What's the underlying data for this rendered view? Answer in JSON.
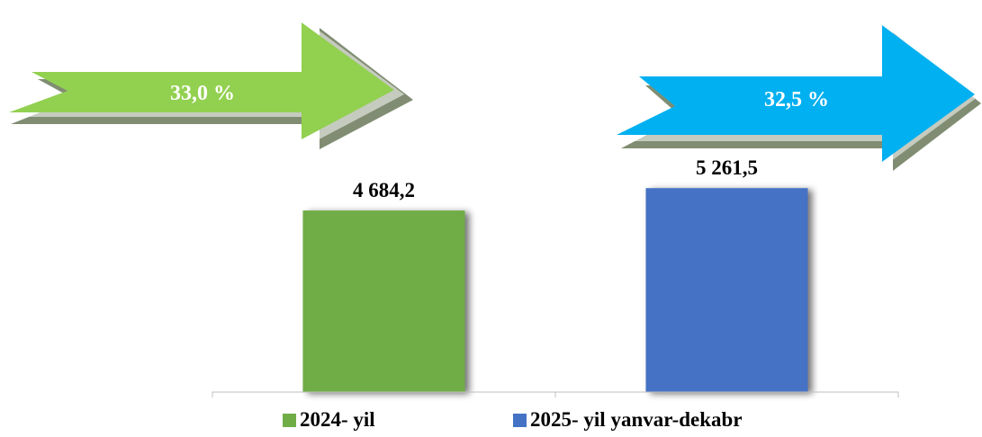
{
  "indicators": [
    {
      "label": "33,0 %",
      "color": "#92d050",
      "shadow": "#808d72"
    },
    {
      "label": "32,5 %",
      "color": "#00b0f0",
      "shadow": "#808d72"
    }
  ],
  "chart_data": {
    "type": "bar",
    "categories": [
      "2024- yil",
      "2025- yil yanvar-dekabr"
    ],
    "values": [
      4684.2,
      5261.5
    ],
    "value_labels": [
      "4 684,2",
      "5 261,5"
    ],
    "colors": [
      "#70ad47",
      "#4472c4"
    ],
    "title": "",
    "xlabel": "",
    "ylabel": "",
    "ylim": [
      0,
      5800
    ],
    "grid": false,
    "legend_position": "bottom",
    "series": [
      {
        "name": "2024- yil",
        "values": [
          4684.2,
          null
        ]
      },
      {
        "name": "2025- yil yanvar-dekabr",
        "values": [
          null,
          5261.5
        ]
      }
    ]
  }
}
